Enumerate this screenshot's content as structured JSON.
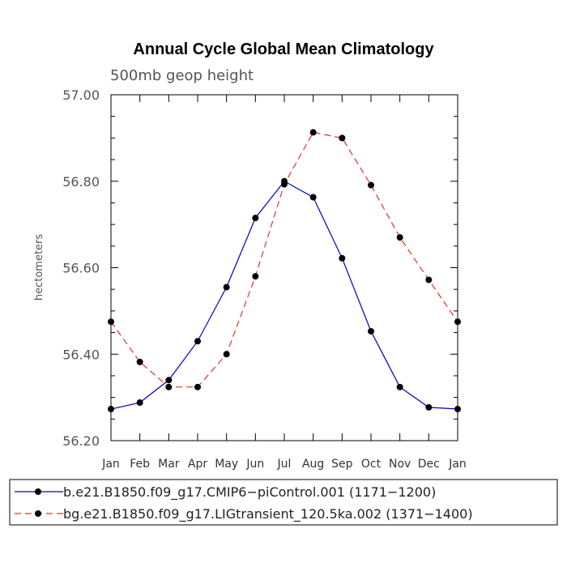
{
  "chart_data": {
    "type": "line",
    "title": "Annual Cycle Global Mean Climatology",
    "subtitle": "500mb geop height",
    "ylabel": "hectometers",
    "xlabel": "",
    "ylim": [
      56.2,
      57.0
    ],
    "yticks": [
      "56.20",
      "56.40",
      "56.60",
      "56.80",
      "57.00"
    ],
    "ytick_values": [
      56.2,
      56.4,
      56.6,
      56.8,
      57.0
    ],
    "categories": [
      "Jan",
      "Feb",
      "Mar",
      "Apr",
      "May",
      "Jun",
      "Jul",
      "Aug",
      "Sep",
      "Oct",
      "Nov",
      "Dec",
      "Jan"
    ],
    "grid": false,
    "legend_placement": "bottom",
    "series": [
      {
        "name": "b.e21.B1850.f09_g17.CMIP6−piControl.001 (1171−1200)",
        "color": "#0000cc",
        "dash": "solid",
        "values": [
          56.273,
          56.288,
          56.34,
          56.43,
          56.555,
          56.715,
          56.8,
          56.763,
          56.622,
          56.453,
          56.324,
          56.277,
          56.273
        ]
      },
      {
        "name": "bg.e21.B1850.f09_g17.LIGtransient_120.5ka.002 (1371−1400)",
        "color": "#e03030",
        "dash": "dashed",
        "values": [
          56.475,
          56.382,
          56.324,
          56.324,
          56.4,
          56.58,
          56.793,
          56.913,
          56.9,
          56.791,
          56.67,
          56.572,
          56.475
        ]
      }
    ]
  }
}
